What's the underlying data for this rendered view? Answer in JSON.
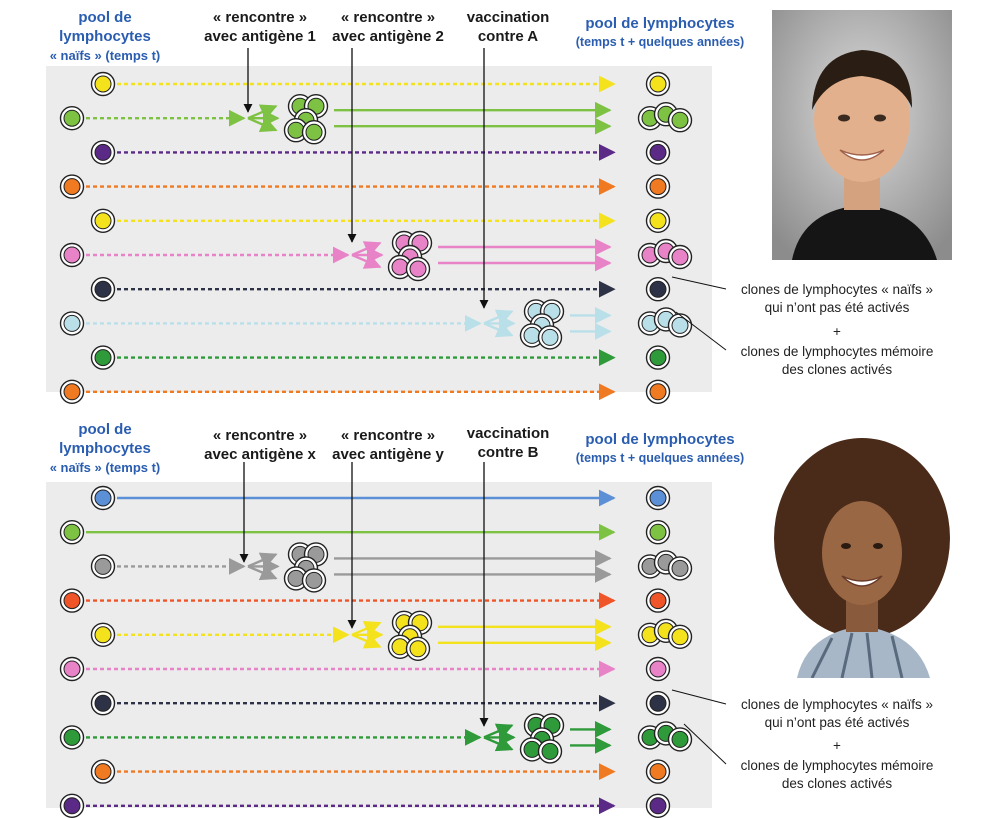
{
  "panels": [
    {
      "pool_start": {
        "line1": "pool de",
        "line2": "lymphocytes",
        "line3_a": "« naïfs »",
        "line3_b": "(temps t)"
      },
      "pool_end": {
        "line1": "pool de lymphocytes",
        "line2": "(temps t + quelques années)"
      },
      "event1": {
        "line1": "« rencontre »",
        "line2": "avec antigène 1"
      },
      "event2": {
        "line1": "« rencontre »",
        "line2": "avec antigène 2"
      },
      "event3": {
        "line1": "vaccination",
        "line2": "contre A"
      },
      "note_naive": {
        "line1": "clones de lymphocytes « naïfs »",
        "line2": "qui n’ont pas été activés"
      },
      "plus": "+",
      "note_memory": {
        "line1": "clones de lymphocytes mémoire",
        "line2": "des clones activés"
      },
      "photo": "young-man-portrait"
    },
    {
      "pool_start": {
        "line1": "pool de",
        "line2": "lymphocytes",
        "line3_a": "« naïfs »",
        "line3_b": "(temps t)"
      },
      "pool_end": {
        "line1": "pool de lymphocytes",
        "line2": "(temps t + quelques années)"
      },
      "event1": {
        "line1": "« rencontre »",
        "line2": "avec antigène x"
      },
      "event2": {
        "line1": "« rencontre »",
        "line2": "avec antigène y"
      },
      "event3": {
        "line1": "vaccination",
        "line2": "contre B"
      },
      "note_naive": {
        "line1": "clones de lymphocytes « naïfs »",
        "line2": "qui n’ont pas été activés"
      },
      "plus": "+",
      "note_memory": {
        "line1": "clones de lymphocytes mémoire",
        "line2": "des clones activés"
      },
      "photo": "young-woman-portrait"
    }
  ],
  "colors": {
    "yellow": "#f3e21c",
    "green": "#7dc242",
    "purple": "#5b2a86",
    "orange": "#f07a22",
    "pink": "#e883c8",
    "dark": "#2e3247",
    "lightblue": "#b9dfe9",
    "darkgreen": "#2f9a3a",
    "red": "#f0552a",
    "blue": "#5b8fd6",
    "gray": "#9a9a9a",
    "panel_bg": "#ececec",
    "title_blue": "#2a5db0"
  },
  "lanes": [
    {
      "panel": 0,
      "color": "yellow",
      "type": "straight"
    },
    {
      "panel": 0,
      "color": "green",
      "type": "activated",
      "event": 1
    },
    {
      "panel": 0,
      "color": "purple",
      "type": "straight"
    },
    {
      "panel": 0,
      "color": "orange",
      "type": "straight"
    },
    {
      "panel": 0,
      "color": "yellow",
      "type": "straight"
    },
    {
      "panel": 0,
      "color": "pink",
      "type": "activated",
      "event": 2
    },
    {
      "panel": 0,
      "color": "dark",
      "type": "straight"
    },
    {
      "panel": 0,
      "color": "lightblue",
      "type": "activated",
      "event": 3
    },
    {
      "panel": 0,
      "color": "darkgreen",
      "type": "straight"
    },
    {
      "panel": 0,
      "color": "orange",
      "type": "straight"
    },
    {
      "panel": 1,
      "color": "blue",
      "type": "solid"
    },
    {
      "panel": 1,
      "color": "green",
      "type": "solid"
    },
    {
      "panel": 1,
      "color": "gray",
      "type": "activated",
      "event": 1
    },
    {
      "panel": 1,
      "color": "red",
      "type": "straight"
    },
    {
      "panel": 1,
      "color": "yellow",
      "type": "activated",
      "event": 2
    },
    {
      "panel": 1,
      "color": "pink",
      "type": "straight"
    },
    {
      "panel": 1,
      "color": "dark",
      "type": "straight"
    },
    {
      "panel": 1,
      "color": "darkgreen",
      "type": "activated",
      "event": 3
    },
    {
      "panel": 1,
      "color": "orange",
      "type": "straight"
    },
    {
      "panel": 1,
      "color": "purple",
      "type": "straight"
    }
  ]
}
